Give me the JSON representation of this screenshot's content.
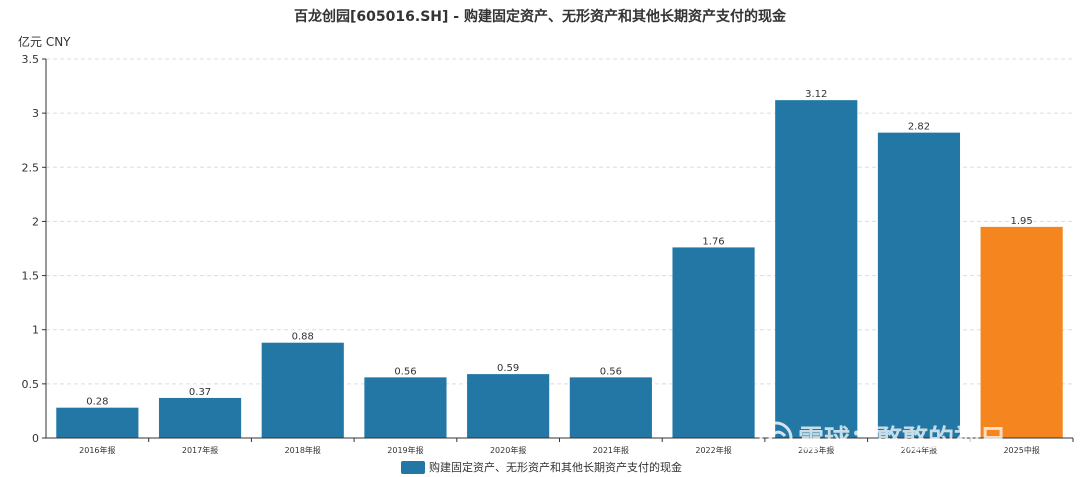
{
  "chart_data": {
    "type": "bar",
    "title": "百龙创园[605016.SH] - 购建固定资产、无形资产和其他长期资产支付的现金",
    "unit_label": "亿元  CNY",
    "categories": [
      "2016年报",
      "2017年报",
      "2018年报",
      "2019年报",
      "2020年报",
      "2021年报",
      "2022年报",
      "2023年报",
      "2024年报",
      "2025中报"
    ],
    "series": [
      {
        "name": "购建固定资产、无形资产和其他长期资产支付的现金",
        "values": [
          0.28,
          0.37,
          0.88,
          0.56,
          0.59,
          0.56,
          1.76,
          3.12,
          2.82,
          1.95
        ],
        "value_labels": [
          "0.28",
          "0.37",
          "0.88",
          "0.56",
          "0.59",
          "0.56",
          "1.76",
          "3.12",
          "2.82",
          "1.95"
        ]
      }
    ],
    "ylim": [
      0,
      3.5
    ],
    "yticks": [
      "0",
      "0.5",
      "1",
      "1.5",
      "2",
      "2.5",
      "3",
      "3.5"
    ],
    "grid": true,
    "legend_position": "bottom",
    "colors": {
      "bar": "#2277a4",
      "highlight_bar": "#f5861f",
      "highlight_index": 9
    }
  },
  "watermark": "雪球：憨憨的禅兄"
}
